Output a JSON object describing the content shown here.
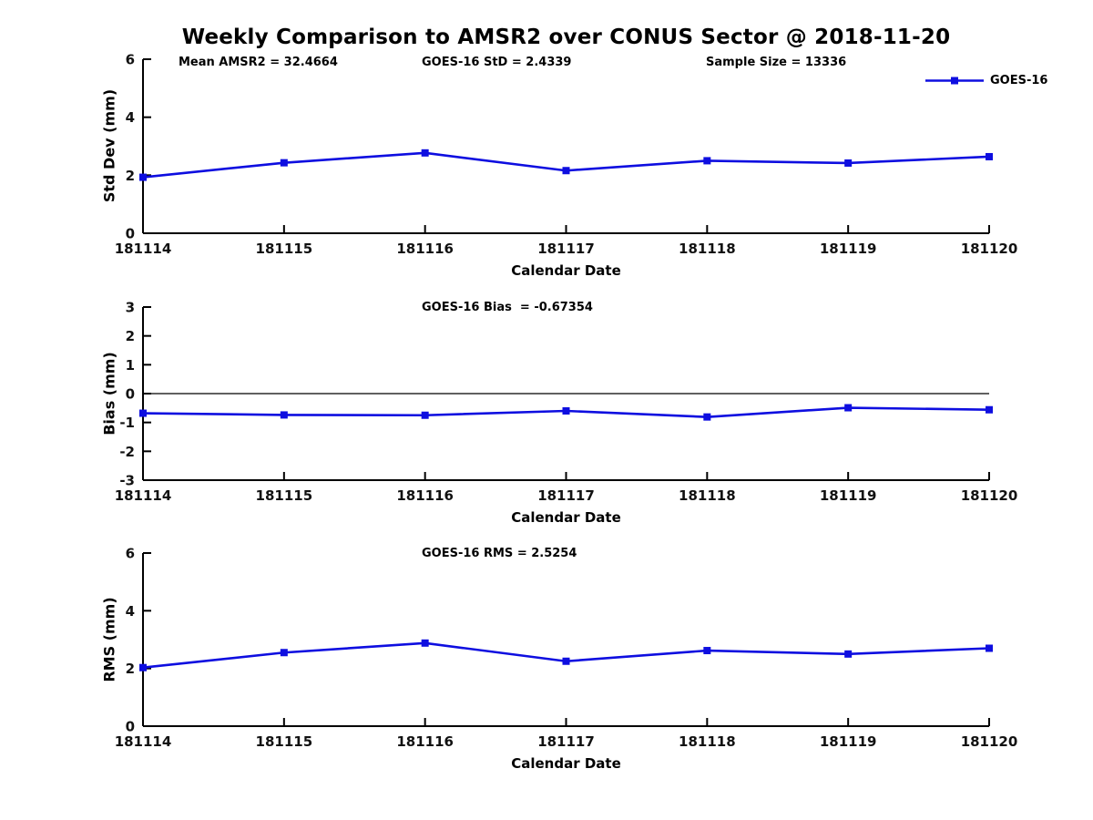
{
  "page": {
    "title": "Weekly Comparison to AMSR2 over CONUS Sector @ 2018-11-20",
    "background": "#ffffff"
  },
  "colors": {
    "series": "#0e0ee0",
    "axis": "#000000",
    "text": "#000000",
    "zero_line": "#000000"
  },
  "legend": {
    "label": "GOES-16",
    "position": "top-right"
  },
  "chart_data": [
    {
      "type": "line",
      "panel": "std-dev",
      "annotations": [
        "Mean AMSR2 = 32.4664",
        "GOES-16 StD = 2.4339",
        "Sample Size = 13336"
      ],
      "categories": [
        "181114",
        "181115",
        "181116",
        "181117",
        "181118",
        "181119",
        "181120"
      ],
      "series": [
        {
          "name": "GOES-16",
          "values": [
            1.93,
            2.43,
            2.77,
            2.16,
            2.5,
            2.42,
            2.64
          ]
        }
      ],
      "xlabel": "Calendar Date",
      "ylabel": "Std Dev (mm)",
      "ylim": [
        0,
        6
      ],
      "yticks": [
        0,
        2,
        4,
        6
      ],
      "grid": false,
      "legend_position": "top-right"
    },
    {
      "type": "line",
      "panel": "bias",
      "title": "GOES-16 Bias  = -0.67354",
      "categories": [
        "181114",
        "181115",
        "181116",
        "181117",
        "181118",
        "181119",
        "181120"
      ],
      "series": [
        {
          "name": "GOES-16",
          "values": [
            -0.68,
            -0.74,
            -0.75,
            -0.6,
            -0.81,
            -0.49,
            -0.56
          ]
        }
      ],
      "xlabel": "Calendar Date",
      "ylabel": "Bias (mm)",
      "ylim": [
        -3,
        3
      ],
      "yticks": [
        3,
        2,
        1,
        0,
        -1,
        -2,
        -3
      ],
      "zero_line": true,
      "grid": false
    },
    {
      "type": "line",
      "panel": "rms",
      "title": "GOES-16 RMS = 2.5254",
      "categories": [
        "181114",
        "181115",
        "181116",
        "181117",
        "181118",
        "181119",
        "181120"
      ],
      "series": [
        {
          "name": "GOES-16",
          "values": [
            2.03,
            2.55,
            2.88,
            2.25,
            2.62,
            2.5,
            2.7
          ]
        }
      ],
      "xlabel": "Calendar Date",
      "ylabel": "RMS (mm)",
      "ylim": [
        0,
        6
      ],
      "yticks": [
        0,
        2,
        4,
        6
      ],
      "grid": false
    }
  ]
}
